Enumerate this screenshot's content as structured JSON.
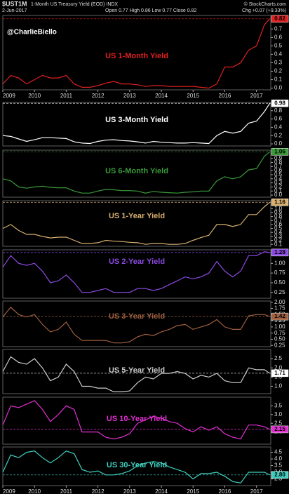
{
  "chart_data": [
    {
      "type": "line",
      "symbol": "$UST1M",
      "title": "1-Month US Treasury Yield (EOD) INDX",
      "date": "2-Jun-2017",
      "ohlc": "Open 0.77 High 0.86 Low 0.77 Close 0.82",
      "change": "Chg +0.07 (+9.33%)",
      "source": "© StockCharts.com",
      "watermark": "@CharlieBiello",
      "label": "US 1-Month Yield",
      "color": "#e02020",
      "x": [
        2009,
        2009.25,
        2009.5,
        2009.75,
        2010,
        2010.25,
        2010.5,
        2010.75,
        2011,
        2011.25,
        2011.5,
        2011.75,
        2012,
        2012.25,
        2012.5,
        2012.75,
        2013,
        2013.25,
        2013.5,
        2013.75,
        2014,
        2014.25,
        2014.5,
        2014.75,
        2015,
        2015.25,
        2015.5,
        2015.75,
        2016,
        2016.25,
        2016.5,
        2016.75,
        2017,
        2017.25,
        2017.42
      ],
      "values": [
        0.05,
        0.15,
        0.12,
        0.05,
        0.1,
        0.15,
        0.12,
        0.12,
        0.15,
        0.05,
        0.01,
        0.01,
        0.03,
        0.06,
        0.08,
        0.05,
        0.05,
        0.04,
        0.02,
        0.03,
        0.03,
        0.02,
        0.02,
        0.02,
        0.02,
        0.01,
        0.0,
        0.05,
        0.25,
        0.25,
        0.3,
        0.45,
        0.5,
        0.75,
        0.82
      ],
      "marker": {
        "value": 0.82,
        "label": "0.82"
      },
      "xlim": [
        2009,
        2017.45
      ],
      "xticks": [
        2009,
        2010,
        2011,
        2012,
        2013,
        2014,
        2015,
        2016,
        2017
      ],
      "ylim": [
        -0.02,
        0.86
      ],
      "yticks": [
        {
          "value": 0,
          "label": "0.0"
        },
        0.1,
        0.2,
        0.3,
        0.4,
        0.5,
        0.6,
        0.7
      ]
    },
    {
      "type": "line",
      "label": "US 3-Month Yield",
      "color": "#ffffff",
      "x": [
        2009,
        2009.25,
        2009.5,
        2009.75,
        2010,
        2010.25,
        2010.5,
        2010.75,
        2011,
        2011.25,
        2011.5,
        2011.75,
        2012,
        2012.25,
        2012.5,
        2012.75,
        2013,
        2013.25,
        2013.5,
        2013.75,
        2014,
        2014.25,
        2014.5,
        2014.75,
        2015,
        2015.25,
        2015.5,
        2015.75,
        2016,
        2016.25,
        2016.5,
        2016.75,
        2017,
        2017.25,
        2017.42
      ],
      "values": [
        0.2,
        0.18,
        0.12,
        0.06,
        0.1,
        0.15,
        0.15,
        0.14,
        0.13,
        0.05,
        0.02,
        0.01,
        0.06,
        0.09,
        0.1,
        0.08,
        0.07,
        0.05,
        0.02,
        0.06,
        0.04,
        0.03,
        0.02,
        0.02,
        0.03,
        0.02,
        0.01,
        0.2,
        0.3,
        0.26,
        0.3,
        0.5,
        0.55,
        0.78,
        0.98
      ],
      "marker": {
        "value": 0.98,
        "label": "0.98"
      },
      "xlim": [
        2009,
        2017.45
      ],
      "ylim": [
        -0.05,
        1.0
      ],
      "yticks": [
        {
          "value": 0,
          "label": "0.0"
        },
        0.2,
        0.4,
        0.6,
        0.8
      ]
    },
    {
      "type": "line",
      "label": "US 6-Month Yield",
      "color": "#3a9a3a",
      "x": [
        2009,
        2009.25,
        2009.5,
        2009.75,
        2010,
        2010.25,
        2010.5,
        2010.75,
        2011,
        2011.25,
        2011.5,
        2011.75,
        2012,
        2012.25,
        2012.5,
        2012.75,
        2013,
        2013.25,
        2013.5,
        2013.75,
        2014,
        2014.25,
        2014.5,
        2014.75,
        2015,
        2015.25,
        2015.5,
        2015.75,
        2016,
        2016.25,
        2016.5,
        2016.75,
        2017,
        2017.25,
        2017.42
      ],
      "values": [
        0.4,
        0.35,
        0.2,
        0.17,
        0.2,
        0.22,
        0.19,
        0.18,
        0.18,
        0.1,
        0.05,
        0.05,
        0.1,
        0.14,
        0.13,
        0.11,
        0.11,
        0.1,
        0.05,
        0.09,
        0.07,
        0.06,
        0.05,
        0.07,
        0.08,
        0.1,
        0.1,
        0.35,
        0.45,
        0.4,
        0.45,
        0.62,
        0.65,
        0.95,
        1.06
      ],
      "marker": {
        "value": 1.06,
        "label": "1.06"
      },
      "xlim": [
        2009,
        2017.45
      ],
      "ylim": [
        -0.05,
        1.1
      ],
      "yticks": [
        {
          "value": 0,
          "label": "0.0"
        },
        0.1,
        0.2,
        0.3,
        0.4,
        0.5,
        0.6,
        0.7,
        0.8,
        0.9
      ]
    },
    {
      "type": "line",
      "label": "US 1-Year Yield",
      "color": "#d8b070",
      "x": [
        2009,
        2009.25,
        2009.5,
        2009.75,
        2010,
        2010.25,
        2010.5,
        2010.75,
        2011,
        2011.25,
        2011.5,
        2011.75,
        2012,
        2012.25,
        2012.5,
        2012.75,
        2013,
        2013.25,
        2013.5,
        2013.75,
        2014,
        2014.25,
        2014.5,
        2014.75,
        2015,
        2015.25,
        2015.5,
        2015.75,
        2016,
        2016.25,
        2016.5,
        2016.75,
        2017,
        2017.25,
        2017.42
      ],
      "values": [
        0.5,
        0.6,
        0.45,
        0.35,
        0.35,
        0.3,
        0.26,
        0.28,
        0.28,
        0.2,
        0.12,
        0.12,
        0.14,
        0.2,
        0.18,
        0.17,
        0.15,
        0.14,
        0.1,
        0.12,
        0.12,
        0.1,
        0.1,
        0.12,
        0.2,
        0.27,
        0.33,
        0.6,
        0.6,
        0.55,
        0.6,
        0.85,
        0.85,
        1.05,
        1.16
      ],
      "marker": {
        "value": 1.16,
        "label": "1.16"
      },
      "xlim": [
        2009,
        2017.45
      ],
      "ylim": [
        0.05,
        1.2
      ],
      "yticks": [
        0.1,
        0.2,
        0.3,
        0.4,
        0.5,
        0.6,
        0.7,
        0.8,
        0.9,
        {
          "value": 1,
          "label": "1.0"
        }
      ]
    },
    {
      "type": "line",
      "label": "US 2-Year Yield",
      "color": "#8a4ae0",
      "x": [
        2009,
        2009.25,
        2009.5,
        2009.75,
        2010,
        2010.25,
        2010.5,
        2010.75,
        2011,
        2011.25,
        2011.5,
        2011.75,
        2012,
        2012.25,
        2012.5,
        2012.75,
        2013,
        2013.25,
        2013.5,
        2013.75,
        2014,
        2014.25,
        2014.5,
        2014.75,
        2015,
        2015.25,
        2015.5,
        2015.75,
        2016,
        2016.25,
        2016.5,
        2016.75,
        2017,
        2017.25,
        2017.42
      ],
      "values": [
        0.9,
        1.2,
        1.0,
        0.95,
        1.0,
        0.8,
        0.5,
        0.55,
        0.7,
        0.5,
        0.25,
        0.25,
        0.3,
        0.35,
        0.25,
        0.25,
        0.25,
        0.35,
        0.35,
        0.3,
        0.35,
        0.45,
        0.55,
        0.65,
        0.6,
        0.65,
        0.75,
        1.05,
        0.8,
        0.65,
        0.8,
        1.2,
        1.2,
        1.3,
        1.28
      ],
      "marker": {
        "value": 1.28,
        "label": "1.28"
      },
      "xlim": [
        2009,
        2017.45
      ],
      "ylim": [
        0.1,
        1.35
      ],
      "yticks": [
        0.25,
        {
          "value": 0.5,
          "label": "0.50"
        },
        0.75,
        {
          "value": 1,
          "label": "1.00"
        }
      ]
    },
    {
      "type": "line",
      "label": "US 3-Year Yield",
      "color": "#a06040",
      "x": [
        2009,
        2009.25,
        2009.5,
        2009.75,
        2010,
        2010.25,
        2010.5,
        2010.75,
        2011,
        2011.25,
        2011.5,
        2011.75,
        2012,
        2012.25,
        2012.5,
        2012.75,
        2013,
        2013.25,
        2013.5,
        2013.75,
        2014,
        2014.25,
        2014.5,
        2014.75,
        2015,
        2015.25,
        2015.5,
        2015.75,
        2016,
        2016.25,
        2016.5,
        2016.75,
        2017,
        2017.25,
        2017.42
      ],
      "values": [
        1.4,
        1.8,
        1.5,
        1.4,
        1.5,
        1.1,
        0.8,
        0.9,
        1.2,
        0.7,
        0.45,
        0.45,
        0.45,
        0.45,
        0.35,
        0.35,
        0.4,
        0.6,
        0.7,
        0.65,
        0.8,
        0.9,
        1.05,
        1.1,
        0.9,
        1.0,
        1.1,
        1.3,
        1.0,
        0.9,
        0.9,
        1.45,
        1.5,
        1.5,
        1.42
      ],
      "marker": {
        "value": 1.42,
        "label": "1.42"
      },
      "xlim": [
        2009,
        2017.45
      ],
      "ylim": [
        0.2,
        2.05
      ],
      "yticks": [
        0.25,
        {
          "value": 0.5,
          "label": "0.50"
        },
        0.75,
        {
          "value": 1,
          "label": "1.00"
        },
        1.25,
        {
          "value": 1.5,
          "label": "1.50"
        },
        1.75,
        {
          "value": 2,
          "label": "2.00"
        }
      ]
    },
    {
      "type": "line",
      "label": "US 5-Year Yield",
      "color": "#cccccc",
      "x": [
        2009,
        2009.25,
        2009.5,
        2009.75,
        2010,
        2010.25,
        2010.5,
        2010.75,
        2011,
        2011.25,
        2011.5,
        2011.75,
        2012,
        2012.25,
        2012.5,
        2012.75,
        2013,
        2013.25,
        2013.5,
        2013.75,
        2014,
        2014.25,
        2014.5,
        2014.75,
        2015,
        2015.25,
        2015.5,
        2015.75,
        2016,
        2016.25,
        2016.5,
        2016.75,
        2017,
        2017.25,
        2017.42
      ],
      "values": [
        1.8,
        2.6,
        2.3,
        2.2,
        2.5,
        2.0,
        1.3,
        1.5,
        2.2,
        1.8,
        1.0,
        1.0,
        0.9,
        0.9,
        0.7,
        0.7,
        0.75,
        1.2,
        1.5,
        1.4,
        1.7,
        1.7,
        1.8,
        1.7,
        1.4,
        1.6,
        1.5,
        1.7,
        1.3,
        1.2,
        1.2,
        2.0,
        1.9,
        1.9,
        1.71
      ],
      "marker": {
        "value": 1.71,
        "label": "1.71"
      },
      "xlim": [
        2009,
        2017.45
      ],
      "ylim": [
        0.6,
        3.0
      ],
      "yticks": [
        {
          "value": 1,
          "label": "1.0"
        },
        1.5,
        {
          "value": 2,
          "label": "2.0"
        },
        2.5
      ]
    },
    {
      "type": "line",
      "label": "US 10-Year Yield",
      "color": "#e030d0",
      "x": [
        2009,
        2009.25,
        2009.5,
        2009.75,
        2010,
        2010.25,
        2010.5,
        2010.75,
        2011,
        2011.25,
        2011.5,
        2011.75,
        2012,
        2012.25,
        2012.5,
        2012.75,
        2013,
        2013.25,
        2013.5,
        2013.75,
        2014,
        2014.25,
        2014.5,
        2014.75,
        2015,
        2015.25,
        2015.5,
        2015.75,
        2016,
        2016.25,
        2016.5,
        2016.75,
        2017,
        2017.25,
        2017.42
      ],
      "values": [
        2.4,
        3.5,
        3.4,
        3.6,
        3.8,
        3.3,
        2.6,
        3.0,
        3.5,
        3.3,
        2.0,
        2.0,
        2.0,
        1.7,
        1.6,
        1.7,
        1.9,
        2.5,
        2.7,
        2.9,
        2.8,
        2.6,
        2.5,
        2.2,
        2.0,
        2.3,
        2.1,
        2.3,
        1.9,
        1.7,
        1.6,
        2.4,
        2.4,
        2.3,
        2.15
      ],
      "marker": {
        "value": 2.15,
        "label": "2.15"
      },
      "xlim": [
        2009,
        2017.45
      ],
      "ylim": [
        1.3,
        4.0
      ],
      "yticks": [
        {
          "value": 2,
          "label": "2.0"
        },
        2.5,
        {
          "value": 3,
          "label": "3.0"
        },
        3.5
      ]
    },
    {
      "type": "line",
      "label": "US 30-Year Yield",
      "color": "#40d0c0",
      "x": [
        2009,
        2009.25,
        2009.5,
        2009.75,
        2010,
        2010.25,
        2010.5,
        2010.75,
        2011,
        2011.25,
        2011.5,
        2011.75,
        2012,
        2012.25,
        2012.5,
        2012.75,
        2013,
        2013.25,
        2013.5,
        2013.75,
        2014,
        2014.25,
        2014.5,
        2014.75,
        2015,
        2015.25,
        2015.5,
        2015.75,
        2016,
        2016.25,
        2016.5,
        2016.75,
        2017,
        2017.25,
        2017.42
      ],
      "values": [
        3.0,
        4.3,
        4.1,
        4.5,
        4.6,
        4.1,
        3.7,
        4.1,
        4.6,
        4.4,
        3.2,
        3.0,
        3.1,
        2.8,
        2.8,
        2.9,
        3.1,
        3.5,
        3.7,
        3.8,
        3.7,
        3.4,
        3.2,
        3.0,
        2.5,
        2.9,
        2.9,
        3.0,
        2.7,
        2.3,
        2.2,
        3.0,
        3.0,
        3.0,
        2.8
      ],
      "marker": {
        "value": 2.8,
        "label": "2.80"
      },
      "xlim": [
        2009,
        2017.45
      ],
      "xticks": [
        2009,
        2010,
        2011,
        2012,
        2013,
        2014,
        2015,
        2016,
        2017
      ],
      "ylim": [
        2.0,
        4.9
      ],
      "yticks": [
        2.5,
        {
          "value": 3,
          "label": "3.0"
        },
        3.5,
        {
          "value": 4,
          "label": "4.0"
        },
        4.5
      ]
    }
  ]
}
